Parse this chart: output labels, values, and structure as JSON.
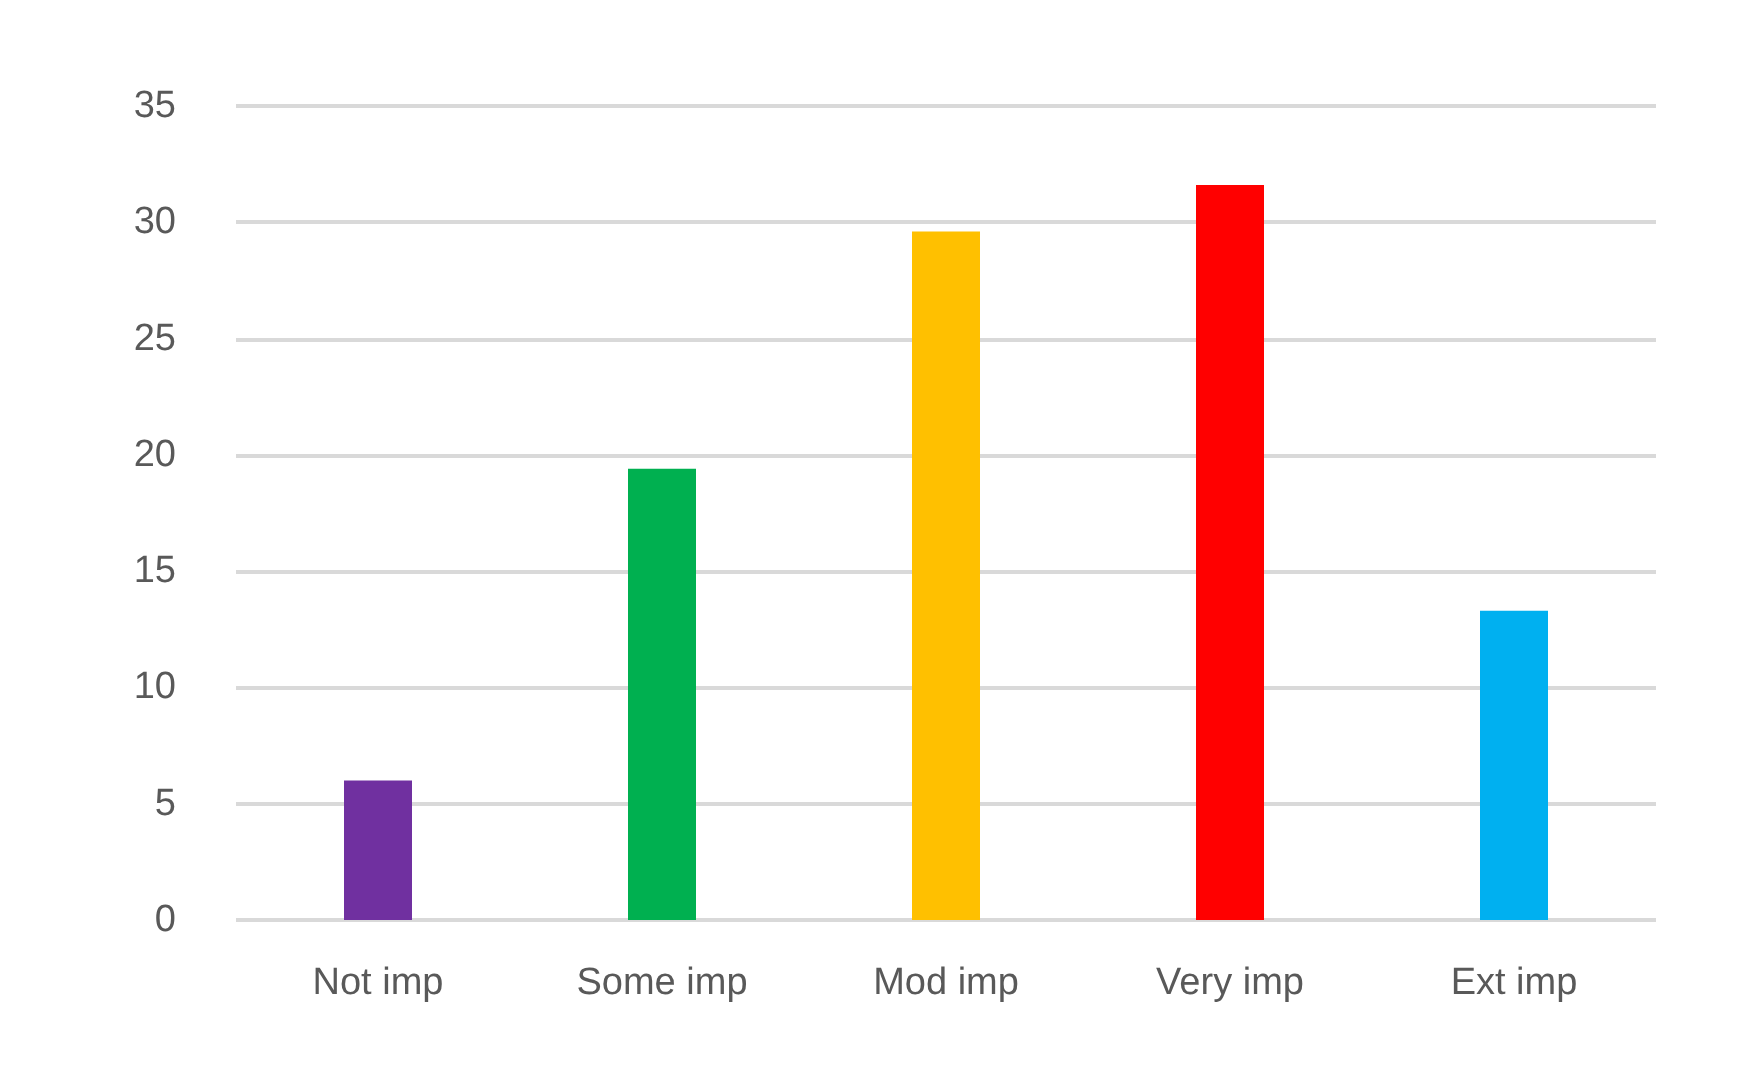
{
  "chart_data": {
    "type": "bar",
    "categories": [
      "Not imp",
      "Some imp",
      "Mod imp",
      "Very imp",
      "Ext imp"
    ],
    "values": [
      6,
      19.4,
      29.6,
      31.6,
      13.3
    ],
    "colors": [
      "#7030a0",
      "#00b050",
      "#ffc000",
      "#ff0000",
      "#00b0f0"
    ],
    "ylim": [
      0,
      35
    ],
    "yticks": [
      0,
      5,
      10,
      15,
      20,
      25,
      30,
      35
    ],
    "grid": "y"
  }
}
